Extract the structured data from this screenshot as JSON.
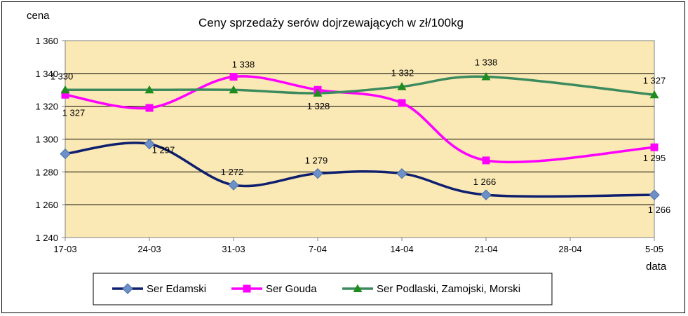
{
  "chart_data": {
    "type": "line",
    "title": "Ceny sprzedaży serów dojrzewających w zł/100kg",
    "ylabel": "cena",
    "xlabel": "data",
    "categories": [
      "17-03",
      "24-03",
      "31-03",
      "7-04",
      "14-04",
      "21-04",
      "28-04",
      "5-05"
    ],
    "ylim": [
      1240,
      1360
    ],
    "yticks": [
      1240,
      1260,
      1280,
      1300,
      1320,
      1340,
      1360
    ],
    "ytick_labels": [
      "1 240",
      "1 260",
      "1 280",
      "1 300",
      "1 320",
      "1 340",
      "1 360"
    ],
    "grid": true,
    "legend_position": "bottom",
    "plot_background": "#FBE9B5",
    "series": [
      {
        "name": "Ser Edamski",
        "color": "#0E1F6E",
        "marker": "diamond",
        "marker_color": "#6E90C8",
        "values": [
          1291,
          1297,
          1272,
          1279,
          1279,
          1266,
          null,
          1266
        ],
        "labels": [
          "",
          "1 297",
          "1 272",
          "1 279",
          "",
          "1 266",
          "",
          "1 266"
        ]
      },
      {
        "name": "Ser Gouda",
        "color": "#FF00FF",
        "marker": "square",
        "marker_color": "#FF00FF",
        "values": [
          1327,
          1319,
          1338,
          1330,
          1322,
          1287,
          null,
          1295
        ],
        "labels": [
          "1 327",
          "",
          "1 338",
          "",
          "",
          "",
          "",
          "1 295"
        ]
      },
      {
        "name": "Ser Podlaski, Zamojski, Morski",
        "color": "#3C8B5E",
        "marker": "triangle",
        "marker_color": "#1E8C1E",
        "values": [
          1330,
          1330,
          1330,
          1328,
          1332,
          1338,
          null,
          1327
        ],
        "labels": [
          "1 330",
          "",
          "",
          "1 328",
          "1 332",
          "1 338",
          "",
          "1 327"
        ]
      }
    ]
  }
}
